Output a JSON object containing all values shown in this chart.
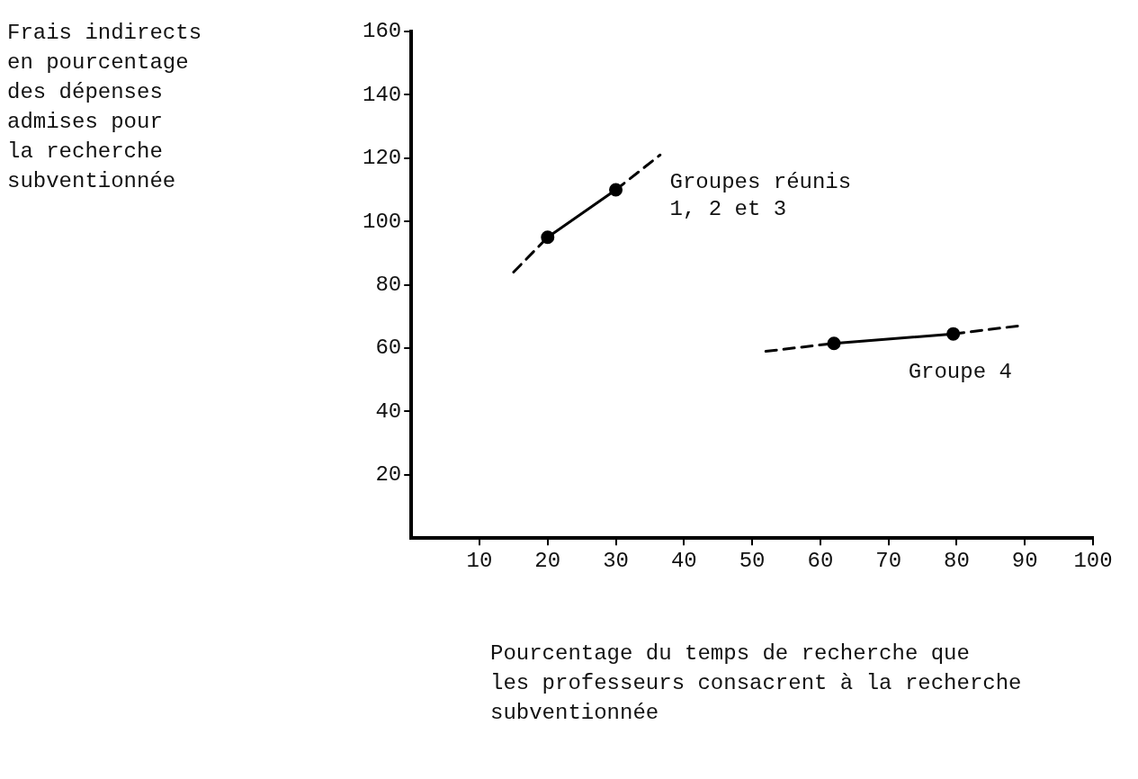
{
  "chart_data": {
    "type": "line",
    "xlabel": "Pourcentage du temps de recherche que\nles professeurs consacrent à la recherche\nsubventionnée",
    "xlim": [
      0,
      100
    ],
    "xticks": [
      10,
      20,
      30,
      40,
      50,
      60,
      70,
      80,
      90,
      100
    ],
    "ylim": [
      0,
      160
    ],
    "yticks": [
      20,
      40,
      60,
      80,
      100,
      120,
      140,
      160
    ],
    "grid": false,
    "legend": false,
    "series": [
      {
        "type": "line",
        "color": "#000000",
        "x": [
          15,
          20
        ],
        "values": [
          84,
          95
        ],
        "line_style": "dashed"
      },
      {
        "type": "line",
        "name": "Groupes réunis\n1, 2 et 3",
        "color": "#000000",
        "x": [
          20,
          30
        ],
        "values": [
          95,
          110
        ],
        "line_style": "solid",
        "marker": "circle"
      },
      {
        "type": "line",
        "color": "#000000",
        "x": [
          30,
          36.5
        ],
        "values": [
          110,
          121
        ],
        "line_style": "dashed",
        "marker": "none"
      },
      {
        "type": "line",
        "color": "#000000",
        "x": [
          52,
          62
        ],
        "values": [
          59,
          61.5
        ],
        "line_style": "dashed"
      },
      {
        "type": "line",
        "name": "Groupe 4",
        "color": "#000000",
        "x": [
          62,
          79.5
        ],
        "values": [
          61.5,
          64.5
        ],
        "line_style": "solid",
        "marker": "circle"
      },
      {
        "type": "line",
        "color": "#000000",
        "x": [
          79.5,
          89
        ],
        "values": [
          64.5,
          67
        ],
        "line_style": "dashed",
        "marker": "none"
      }
    ],
    "annotations": [
      "Frais indirects\nen pourcentage\ndes dépenses\nadmises pour\nla recherche\nsubventionnée"
    ]
  }
}
